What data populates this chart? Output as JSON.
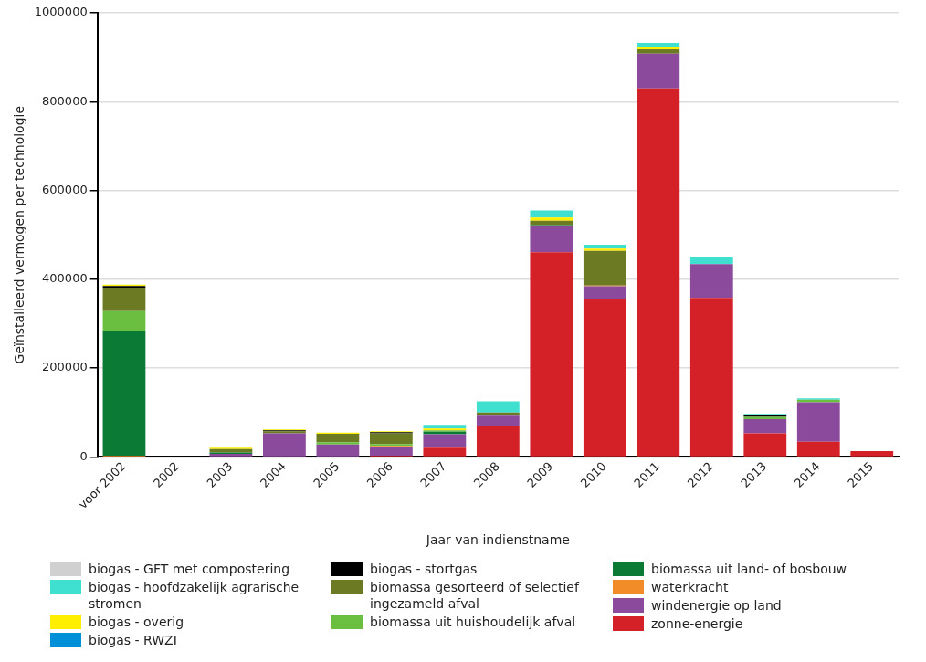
{
  "chart_data": {
    "type": "bar",
    "stacked": true,
    "xlabel": "Jaar van indienstname",
    "ylabel": "Geïnstalleerd vermogen per technologie",
    "categories": [
      "voor 2002",
      "2002",
      "2003",
      "2004",
      "2005",
      "2006",
      "2007",
      "2008",
      "2009",
      "2010",
      "2011",
      "2012",
      "2013",
      "2014",
      "2015"
    ],
    "ylim": [
      0,
      1000000
    ],
    "yticks": [
      0,
      200000,
      400000,
      600000,
      800000,
      1000000
    ],
    "grid": "y",
    "legend": "bottom",
    "series": [
      {
        "name": "zonne-energie",
        "color": "#d42027",
        "values": [
          0,
          0,
          0,
          0,
          0,
          3000,
          21000,
          70000,
          461000,
          355000,
          830000,
          358000,
          53000,
          34000,
          13000
        ]
      },
      {
        "name": "windenergie op land",
        "color": "#8b4a9c",
        "values": [
          0,
          0,
          7000,
          53000,
          28000,
          20000,
          30000,
          23000,
          58000,
          29000,
          78000,
          76000,
          32000,
          89000,
          0
        ]
      },
      {
        "name": "waterkracht",
        "color": "#f28c28",
        "values": [
          3000,
          0,
          0,
          0,
          0,
          2000,
          null,
          0,
          0,
          2000,
          0,
          0,
          0,
          0,
          0
        ]
      },
      {
        "name": "biomassa uit land- of bosbouw",
        "color": "#0b7a35",
        "values": [
          280000,
          0,
          3000,
          0,
          0,
          0,
          6000,
          0,
          3000,
          0,
          0,
          0,
          0,
          0,
          0
        ]
      },
      {
        "name": "biomassa uit huishoudelijk afval",
        "color": "#6abf40",
        "values": [
          45000,
          0,
          0,
          0,
          5000,
          4000,
          3000,
          0,
          0,
          0,
          0,
          0,
          5000,
          6000,
          0
        ]
      },
      {
        "name": "biomassa gesorteerd of selectief ingezameld afval",
        "color": "#6b7a23",
        "values": [
          53000,
          0,
          8000,
          5000,
          19000,
          24000,
          0,
          7000,
          10000,
          78000,
          10000,
          0,
          0,
          0,
          0
        ]
      },
      {
        "name": "biogas - stortgas",
        "color": "#000000",
        "values": [
          4000,
          0,
          0,
          2000,
          0,
          3000,
          0,
          0,
          0,
          0,
          0,
          0,
          4000,
          0,
          0
        ]
      },
      {
        "name": "biogas - RWZI",
        "color": "#0090d8",
        "values": [
          0,
          0,
          0,
          0,
          0,
          0,
          0,
          0,
          0,
          0,
          0,
          0,
          0,
          0,
          0
        ]
      },
      {
        "name": "biogas - overig",
        "color": "#ffee00",
        "values": [
          3000,
          0,
          3000,
          2000,
          3000,
          2000,
          4000,
          0,
          7000,
          5000,
          4000,
          0,
          0,
          0,
          0
        ]
      },
      {
        "name": "biogas - hoofdzakelijk agrarische stromen",
        "color": "#40e0d0",
        "values": [
          0,
          0,
          0,
          0,
          0,
          0,
          8000,
          25000,
          16000,
          9000,
          10000,
          16000,
          3000,
          3000,
          0
        ]
      },
      {
        "name": "biogas - GFT met compostering",
        "color": "#d0d0d0",
        "values": [
          0,
          0,
          0,
          0,
          0,
          0,
          0,
          0,
          0,
          0,
          0,
          0,
          0,
          0,
          0
        ]
      }
    ]
  }
}
